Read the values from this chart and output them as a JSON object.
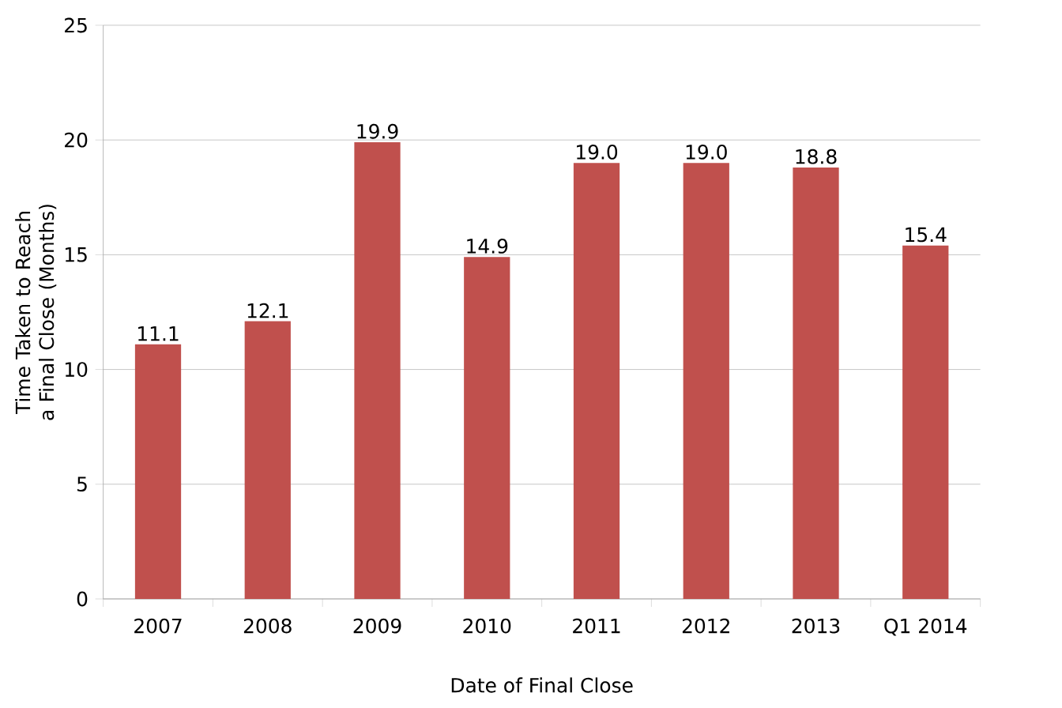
{
  "chart_data": {
    "type": "bar",
    "xlabel": "Date of Final Close",
    "ylabel": "Time Taken to Reach a Final Close (Months)",
    "categories": [
      "2007",
      "2008",
      "2009",
      "2010",
      "2011",
      "2012",
      "2013",
      "Q1 2014"
    ],
    "values": [
      11.1,
      12.1,
      19.9,
      14.9,
      19.0,
      19.0,
      18.8,
      15.4
    ],
    "value_labels": [
      "11.1",
      "12.1",
      "19.9",
      "14.9",
      "19.0",
      "19.0",
      "18.8",
      "15.4"
    ],
    "color": "#c0504d",
    "ylim": [
      0,
      25
    ],
    "yticks": [
      0,
      5,
      10,
      15,
      20,
      25
    ],
    "grid": "y",
    "legend": false
  }
}
